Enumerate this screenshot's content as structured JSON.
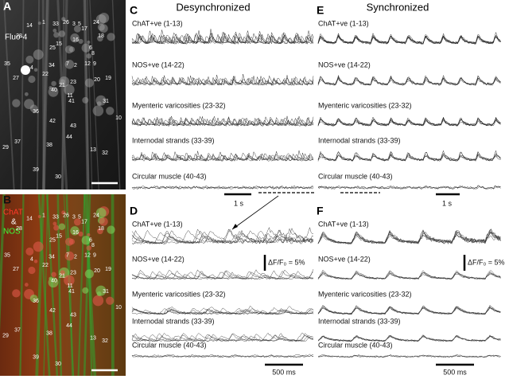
{
  "panels": {
    "A": {
      "label": "A",
      "stain": "Fluo-4",
      "cells": [
        "14",
        "1",
        "33",
        "26",
        "3",
        "5",
        "17",
        "18",
        "24",
        "28",
        "25",
        "15",
        "16",
        "6",
        "8",
        "9",
        "35",
        "34",
        "4",
        "2",
        "7",
        "12",
        "11",
        "27",
        "22",
        "20",
        "23",
        "19",
        "40",
        "21",
        "41",
        "31",
        "10",
        "36",
        "42",
        "43",
        "29",
        "37",
        "38",
        "44",
        "13",
        "32",
        "39",
        "30"
      ]
    },
    "B": {
      "label": "B",
      "stain_1": "ChAT",
      "stain_join": "&",
      "stain_2": "NOS",
      "cells": [
        "14",
        "1",
        "33",
        "26",
        "3",
        "5",
        "17",
        "18",
        "24",
        "28",
        "25",
        "15",
        "16",
        "6",
        "8",
        "9",
        "35",
        "34",
        "4",
        "2",
        "7",
        "12",
        "11",
        "27",
        "22",
        "20",
        "23",
        "19",
        "40",
        "21",
        "41",
        "31",
        "10",
        "36",
        "42",
        "43",
        "29",
        "37",
        "38",
        "44",
        "13",
        "32",
        "39",
        "30"
      ]
    },
    "C": {
      "label": "C",
      "title": "Desynchronized",
      "groups": [
        "ChAT+ve (1-13)",
        "NOS+ve (14-22)",
        "Myenteric varicosities (23-32)",
        "Internodal strands (33-39)",
        "Circular muscle (40-43)"
      ],
      "scale_time": "1 s"
    },
    "D": {
      "label": "D",
      "groups": [
        "ChAT+ve (1-13)",
        "NOS+ve (14-22)",
        "Myenteric varicosities (23-32)",
        "Internodal strands (33-39)",
        "Circular muscle (40-43)"
      ],
      "scale_time": "500 ms",
      "scale_amp": "ΔF/F₀ = 5%"
    },
    "E": {
      "label": "E",
      "title": "Synchronized",
      "groups": [
        "ChAT+ve (1-13)",
        "NOS+ve (14-22)",
        "Myenteric varicosities (23-32)",
        "Internodal strands (33-39)",
        "Circular muscle (40-43)"
      ],
      "scale_time": "1 s"
    },
    "F": {
      "label": "F",
      "groups": [
        "ChAT+ve (1-13)",
        "NOS+ve (14-22)",
        "Myenteric varicosities (23-32)",
        "Internodal strands (33-39)",
        "Circular muscle (40-43)"
      ],
      "scale_time": "500 ms",
      "scale_amp": "ΔF/F₀ = 5%"
    }
  }
}
